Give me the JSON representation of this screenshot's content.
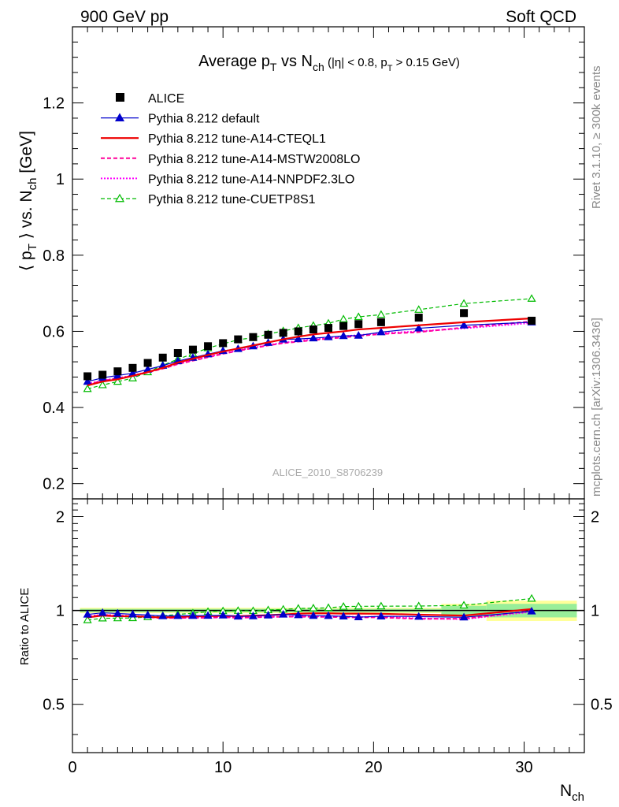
{
  "header": {
    "left": "900 GeV pp",
    "right": "Soft QCD"
  },
  "side_text": {
    "rivet": "Rivet 3.1.10, ≥ 300k events",
    "mcplots": "mcplots.cern.ch [arXiv:1306.3436]"
  },
  "watermark": "ALICE_2010_S8706239",
  "colors": {
    "alice": "#000000",
    "default": "#0000cc",
    "cteql1": "#ee0000",
    "mstw": "#ff0099",
    "nnpdf": "#ff00ff",
    "cuetp8s1": "#00bb00",
    "band_inner": "#99ee99",
    "band_outer": "#ffff99"
  },
  "chart_data": [
    {
      "type": "line",
      "title_parts": {
        "pre": "Average p",
        "sub1": "T",
        "mid": " vs N",
        "sub2": "ch",
        "small_pre": " (|η| < 0.8, p",
        "small_sub": "T",
        "small_post": " > 0.15 GeV)"
      },
      "ylabel_parts": {
        "a": "⟨ p",
        "asub": "T",
        "b": " ⟩ vs. N",
        "bsub": "ch",
        "c": " [GeV]"
      },
      "xlim": [
        0,
        34
      ],
      "ylim": [
        0.16,
        1.4
      ],
      "yticks": [
        {
          "v": 0.2,
          "label": "0.2"
        },
        {
          "v": 0.4,
          "label": "0.4"
        },
        {
          "v": 0.6,
          "label": "0.6"
        },
        {
          "v": 0.8,
          "label": "0.8"
        },
        {
          "v": 1.0,
          "label": "1"
        },
        {
          "v": 1.2,
          "label": "1.2"
        }
      ],
      "legend_position": "top-left",
      "series": [
        {
          "name": "ALICE",
          "key": "alice",
          "style": "square",
          "x": [
            1,
            2,
            3,
            4,
            5,
            6,
            7,
            8,
            9,
            10,
            11,
            12,
            13,
            14,
            15,
            16,
            17,
            18,
            19,
            20.5,
            23,
            26,
            30.5
          ],
          "y": [
            0.482,
            0.486,
            0.495,
            0.504,
            0.517,
            0.531,
            0.543,
            0.552,
            0.561,
            0.569,
            0.579,
            0.585,
            0.591,
            0.596,
            0.6,
            0.605,
            0.609,
            0.614,
            0.619,
            0.624,
            0.636,
            0.648,
            0.628
          ]
        },
        {
          "name": "Pythia 8.212 default",
          "key": "default",
          "style": "line-triangle",
          "x": [
            1,
            2,
            3,
            4,
            5,
            6,
            7,
            8,
            9,
            10,
            11,
            12,
            13,
            14,
            15,
            16,
            17,
            18,
            19,
            20.5,
            23,
            26,
            30.5
          ],
          "y": [
            0.468,
            0.478,
            0.484,
            0.49,
            0.5,
            0.51,
            0.522,
            0.531,
            0.54,
            0.549,
            0.554,
            0.561,
            0.57,
            0.579,
            0.58,
            0.582,
            0.585,
            0.588,
            0.589,
            0.598,
            0.608,
            0.616,
            0.624
          ]
        },
        {
          "name": "Pythia 8.212 tune-A14-CTEQL1",
          "key": "cteql1",
          "style": "solid",
          "x": [
            1,
            2,
            3,
            4,
            5,
            6,
            7,
            8,
            9,
            10,
            11,
            12,
            13,
            14,
            15,
            16,
            17,
            18,
            19,
            20.5,
            23,
            26,
            30.5
          ],
          "y": [
            0.458,
            0.468,
            0.474,
            0.483,
            0.493,
            0.504,
            0.518,
            0.528,
            0.538,
            0.547,
            0.555,
            0.563,
            0.571,
            0.579,
            0.586,
            0.592,
            0.596,
            0.6,
            0.605,
            0.609,
            0.616,
            0.624,
            0.634
          ]
        },
        {
          "name": "Pythia 8.212 tune-A14-MSTW2008LO",
          "key": "mstw",
          "style": "dashed",
          "x": [
            1,
            2,
            3,
            4,
            5,
            6,
            7,
            8,
            9,
            10,
            11,
            12,
            13,
            14,
            15,
            16,
            17,
            18,
            19,
            20.5,
            23,
            26,
            30.5
          ],
          "y": [
            0.46,
            0.47,
            0.476,
            0.483,
            0.492,
            0.502,
            0.514,
            0.523,
            0.532,
            0.541,
            0.549,
            0.556,
            0.563,
            0.569,
            0.573,
            0.577,
            0.581,
            0.584,
            0.588,
            0.593,
            0.598,
            0.61,
            0.626
          ]
        },
        {
          "name": "Pythia 8.212 tune-A14-NNPDF2.3LO",
          "key": "nnpdf",
          "style": "dotted",
          "x": [
            1,
            2,
            3,
            4,
            5,
            6,
            7,
            8,
            9,
            10,
            11,
            12,
            13,
            14,
            15,
            16,
            17,
            18,
            19,
            20.5,
            23,
            26,
            30.5
          ],
          "y": [
            0.462,
            0.471,
            0.477,
            0.484,
            0.494,
            0.503,
            0.515,
            0.524,
            0.533,
            0.542,
            0.55,
            0.557,
            0.564,
            0.57,
            0.575,
            0.579,
            0.583,
            0.587,
            0.59,
            0.595,
            0.6,
            0.608,
            0.622
          ]
        },
        {
          "name": "Pythia 8.212 tune-CUETP8S1",
          "key": "cuetp8s1",
          "style": "dashed-open-triangle",
          "x": [
            1,
            2,
            3,
            4,
            5,
            6,
            7,
            8,
            9,
            10,
            11,
            12,
            13,
            14,
            15,
            16,
            17,
            18,
            19,
            20.5,
            23,
            26,
            30.5
          ],
          "y": [
            0.449,
            0.459,
            0.468,
            0.477,
            0.493,
            0.511,
            0.527,
            0.541,
            0.556,
            0.567,
            0.578,
            0.583,
            0.593,
            0.601,
            0.609,
            0.615,
            0.621,
            0.632,
            0.638,
            0.644,
            0.657,
            0.673,
            0.686
          ]
        }
      ]
    },
    {
      "type": "line",
      "ylabel": "Ratio to ALICE",
      "xlabel_parts": {
        "a": "N",
        "sub": "ch"
      },
      "xlim": [
        0,
        34
      ],
      "ylim": [
        0.35,
        2.28
      ],
      "log_scale": true,
      "yticks": [
        {
          "v": 0.5,
          "label": "0.5"
        },
        {
          "v": 1.0,
          "label": "1"
        },
        {
          "v": 2.0,
          "label": "2"
        }
      ],
      "xticks": [
        {
          "v": 0,
          "label": "0"
        },
        {
          "v": 10,
          "label": "10"
        },
        {
          "v": 20,
          "label": "20"
        },
        {
          "v": 30,
          "label": "30"
        }
      ],
      "bands": [
        {
          "x0": 0.5,
          "x1": 24.5,
          "inner": 0.012,
          "outer": 0.02
        },
        {
          "x0": 24.5,
          "x1": 27.5,
          "inner": 0.035,
          "outer": 0.05
        },
        {
          "x0": 27.5,
          "x1": 33.5,
          "inner": 0.05,
          "outer": 0.075
        }
      ],
      "series": [
        {
          "key": "default",
          "style": "line-triangle",
          "x": [
            1,
            2,
            3,
            4,
            5,
            6,
            7,
            8,
            9,
            10,
            11,
            12,
            13,
            14,
            15,
            16,
            17,
            18,
            19,
            20.5,
            23,
            26,
            30.5
          ],
          "y": [
            0.971,
            0.983,
            0.978,
            0.972,
            0.967,
            0.96,
            0.961,
            0.962,
            0.963,
            0.965,
            0.957,
            0.959,
            0.965,
            0.971,
            0.967,
            0.962,
            0.961,
            0.958,
            0.952,
            0.958,
            0.956,
            0.951,
            0.994
          ]
        },
        {
          "key": "cteql1",
          "style": "solid",
          "x": [
            1,
            2,
            3,
            4,
            5,
            6,
            7,
            8,
            9,
            10,
            11,
            12,
            13,
            14,
            15,
            16,
            17,
            18,
            19,
            20.5,
            23,
            26,
            30.5
          ],
          "y": [
            0.95,
            0.963,
            0.958,
            0.958,
            0.954,
            0.949,
            0.954,
            0.957,
            0.959,
            0.961,
            0.959,
            0.962,
            0.966,
            0.971,
            0.977,
            0.979,
            0.979,
            0.977,
            0.977,
            0.976,
            0.969,
            0.963,
            1.01
          ]
        },
        {
          "key": "mstw",
          "style": "dashed",
          "x": [
            1,
            2,
            3,
            4,
            5,
            6,
            7,
            8,
            9,
            10,
            11,
            12,
            13,
            14,
            15,
            16,
            17,
            18,
            19,
            20.5,
            23,
            26,
            30.5
          ],
          "y": [
            0.954,
            0.967,
            0.962,
            0.958,
            0.952,
            0.945,
            0.947,
            0.947,
            0.948,
            0.951,
            0.948,
            0.95,
            0.953,
            0.955,
            0.955,
            0.954,
            0.954,
            0.951,
            0.95,
            0.95,
            0.94,
            0.941,
            0.997
          ]
        },
        {
          "key": "nnpdf",
          "style": "dotted",
          "x": [
            1,
            2,
            3,
            4,
            5,
            6,
            7,
            8,
            9,
            10,
            11,
            12,
            13,
            14,
            15,
            16,
            17,
            18,
            19,
            20.5,
            23,
            26,
            30.5
          ],
          "y": [
            0.958,
            0.969,
            0.964,
            0.96,
            0.955,
            0.947,
            0.948,
            0.949,
            0.95,
            0.953,
            0.95,
            0.952,
            0.954,
            0.956,
            0.958,
            0.957,
            0.957,
            0.956,
            0.953,
            0.954,
            0.943,
            0.938,
            0.99
          ]
        },
        {
          "key": "cuetp8s1",
          "style": "dashed-open-triangle",
          "x": [
            1,
            2,
            3,
            4,
            5,
            6,
            7,
            8,
            9,
            10,
            11,
            12,
            13,
            14,
            15,
            16,
            17,
            18,
            19,
            20.5,
            23,
            26,
            30.5
          ],
          "y": [
            0.932,
            0.944,
            0.945,
            0.946,
            0.953,
            0.962,
            0.971,
            0.98,
            0.991,
            0.996,
            0.998,
            0.997,
            1.003,
            1.008,
            1.015,
            1.017,
            1.02,
            1.029,
            1.031,
            1.032,
            1.033,
            1.039,
            1.092
          ]
        }
      ]
    }
  ]
}
